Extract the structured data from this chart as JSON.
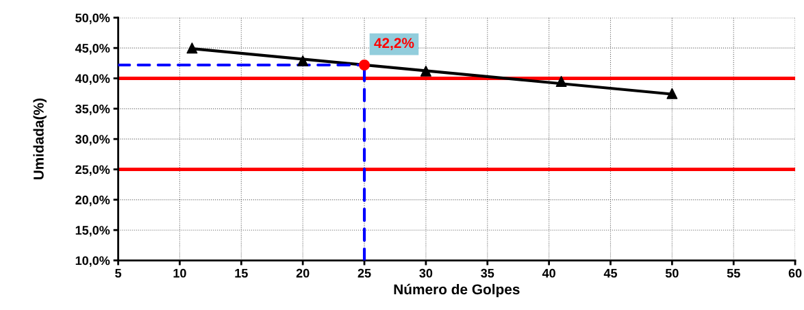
{
  "chart_data": {
    "type": "scatter",
    "xlabel": "Número de Golpes",
    "ylabel": "Umidada(%)",
    "series": [
      {
        "color": "#000000",
        "x": [
          11,
          20,
          30,
          41,
          50
        ],
        "values": [
          45.0,
          42.9,
          41.2,
          39.5,
          37.5
        ],
        "marker": "triangle"
      },
      {
        "type": "line",
        "color": "#000000",
        "x": [
          11,
          50
        ],
        "values": [
          44.9,
          37.4
        ],
        "line_style": "solid"
      },
      {
        "type": "line",
        "color": "#0000ff",
        "x": [
          5,
          25
        ],
        "values": [
          42.2,
          42.2
        ],
        "line_style": "dashed"
      },
      {
        "type": "line",
        "color": "#0000ff",
        "x": [
          25,
          25
        ],
        "values": [
          10,
          42.2
        ],
        "line_style": "dashed"
      },
      {
        "type": "scatter",
        "color": "#ff0000",
        "x": [
          25
        ],
        "values": [
          42.2
        ],
        "marker": "circle"
      }
    ],
    "ref_lines": [
      {
        "axis": "y",
        "value": 40,
        "color": "#ff0000"
      },
      {
        "axis": "y",
        "value": 25,
        "color": "#ff0000"
      }
    ],
    "annotations": [
      {
        "text": "42,2%",
        "x": 25,
        "y": 42.2
      }
    ],
    "xlim": [
      5,
      60
    ],
    "xticks": [
      5,
      10,
      15,
      20,
      25,
      30,
      35,
      40,
      45,
      50,
      55,
      60
    ],
    "ylim": [
      10,
      50
    ],
    "yticks": [
      {
        "value": 10,
        "label": "10,0%"
      },
      {
        "value": 15,
        "label": "15,0%"
      },
      {
        "value": 20,
        "label": "20,0%"
      },
      {
        "value": 25,
        "label": "25,0%"
      },
      {
        "value": 30,
        "label": "30,0%"
      },
      {
        "value": 35,
        "label": "35,0%"
      },
      {
        "value": 40,
        "label": "40,0%"
      },
      {
        "value": 45,
        "label": "45,0%"
      },
      {
        "value": 50,
        "label": "50,0%"
      }
    ],
    "grid": true,
    "legend": false
  }
}
